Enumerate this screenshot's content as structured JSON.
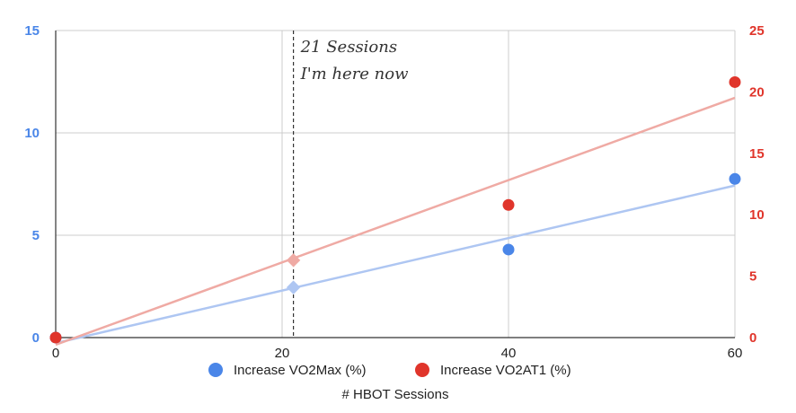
{
  "chart_data": {
    "type": "scatter",
    "title": "",
    "xlabel": "# HBOT Sessions",
    "x_ticks": [
      "0",
      "20",
      "40",
      "60"
    ],
    "xlim": [
      0,
      60
    ],
    "y_left": {
      "lim": [
        0,
        15
      ],
      "ticks": [
        "0",
        "5",
        "10",
        "15"
      ],
      "color": "#4a86e8"
    },
    "y_right": {
      "lim": [
        0,
        25
      ],
      "ticks": [
        "0",
        "5",
        "10",
        "15",
        "20",
        "25"
      ],
      "color": "#e0352b"
    },
    "grid": true,
    "legend_position": "bottom",
    "series": [
      {
        "name": "Increase VO2Max (%)",
        "axis": "left",
        "color": "#4a86e8",
        "trend_color": "#aec6f2",
        "x": [
          0,
          40,
          60
        ],
        "y": [
          0,
          4.3,
          7.75
        ],
        "projected": {
          "x": 21,
          "y": 2.45
        },
        "trendline": {
          "slope": 0.1283,
          "intercept": -0.27
        }
      },
      {
        "name": "Increase VO2AT1 (%)",
        "axis": "right",
        "color": "#e0352b",
        "trend_color": "#efaaa4",
        "x": [
          0,
          40,
          60
        ],
        "y": [
          0,
          10.8,
          20.8
        ],
        "projected": {
          "x": 21,
          "y": 6.3
        },
        "trendline": {
          "slope": 0.335,
          "intercept": -0.58
        }
      }
    ],
    "annotation": {
      "x": 21,
      "lines": [
        "21 Sessions",
        "I'm here now"
      ]
    }
  }
}
